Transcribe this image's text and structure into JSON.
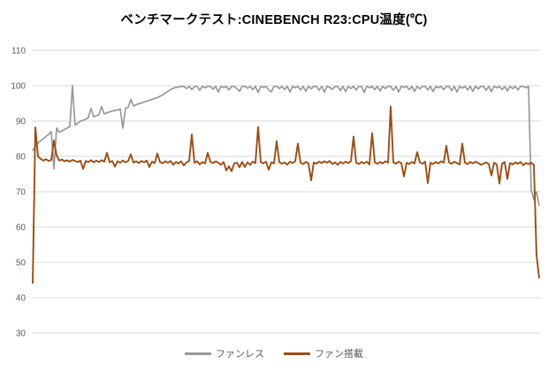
{
  "title": "ベンチマークテスト:CINEBENCH R23:CPU温度(℃)",
  "chart_data": {
    "type": "line",
    "title": "ベンチマークテスト:CINEBENCH R23:CPU温度(℃)",
    "xlabel": "",
    "ylabel": "",
    "x_axis": {
      "visible": false,
      "note": "time during benchmark run, no tick labels shown"
    },
    "y_axis": {
      "min": 30,
      "max": 110,
      "tick_step": 10,
      "ticks": [
        110,
        100,
        90,
        80,
        70,
        60,
        50,
        40,
        30
      ]
    },
    "grid": "horizontal",
    "gridline_color": "#d9d9d9",
    "tick_label_color": "#595959",
    "legend_position": "bottom",
    "series": [
      {
        "name": "ファンレス",
        "key": "fanless",
        "color": "#999999",
        "stroke_width": 1.7,
        "values": [
          81.5,
          83.0,
          83.8,
          84.4,
          85.0,
          85.6,
          86.2,
          87.0,
          76.5,
          88.0,
          86.8,
          87.2,
          87.6,
          88.0,
          88.4,
          100.0,
          88.8,
          89.4,
          90.0,
          90.2,
          90.5,
          91.0,
          93.6,
          91.2,
          91.5,
          91.8,
          94.1,
          92.0,
          92.3,
          92.6,
          92.8,
          93.0,
          93.1,
          93.4,
          88.0,
          93.6,
          93.9,
          96.1,
          94.3,
          94.6,
          94.9,
          95.1,
          95.4,
          95.6,
          95.9,
          96.1,
          96.4,
          96.6,
          97.0,
          97.4,
          97.9,
          98.4,
          98.9,
          99.3,
          99.5,
          99.6,
          99.8,
          99.8,
          99.2,
          99.8,
          98.9,
          99.8,
          99.8,
          98.7,
          99.8,
          99.4,
          99.8,
          99.8,
          99.0,
          99.8,
          98.2,
          99.8,
          99.5,
          99.8,
          98.8,
          99.8,
          99.8,
          99.1,
          98.4,
          99.8,
          99.8,
          99.3,
          99.8,
          98.9,
          99.8,
          98.1,
          99.8,
          99.5,
          99.8,
          98.8,
          98.3,
          99.8,
          99.8,
          99.2,
          99.8,
          98.9,
          99.8,
          98.2,
          99.8,
          99.4,
          99.8,
          98.8,
          99.8,
          98.4,
          99.8,
          99.1,
          99.8,
          99.8,
          98.7,
          99.8,
          98.2,
          99.8,
          99.5,
          99.0,
          99.8,
          99.8,
          98.6,
          99.8,
          98.3,
          99.8,
          99.2,
          99.8,
          98.8,
          99.8,
          99.8,
          98.1,
          99.8,
          99.4,
          99.8,
          98.9,
          99.8,
          98.5,
          99.8,
          99.2,
          99.8,
          99.8,
          98.7,
          99.8,
          98.2,
          99.8,
          99.5,
          99.8,
          98.9,
          99.8,
          98.4,
          99.8,
          99.1,
          99.8,
          99.8,
          98.8,
          99.8,
          98.3,
          99.8,
          99.4,
          99.8,
          98.9,
          99.8,
          99.8,
          98.6,
          99.8,
          98.2,
          99.8,
          99.3,
          99.8,
          98.8,
          99.8,
          98.4,
          99.8,
          99.1,
          99.8,
          99.8,
          98.7,
          99.8,
          98.3,
          99.8,
          99.4,
          99.8,
          98.9,
          99.8,
          98.5,
          99.8,
          99.2,
          99.8,
          98.8,
          99.8,
          99.8,
          99.4,
          99.8,
          70.5,
          67.8,
          70.0,
          66.0
        ]
      },
      {
        "name": "ファン搭載",
        "key": "fan-equipped",
        "color": "#9e4d10",
        "stroke_width": 1.9,
        "values": [
          44.0,
          88.2,
          80.0,
          79.3,
          78.8,
          79.2,
          78.7,
          79.0,
          84.5,
          80.3,
          78.8,
          79.1,
          78.6,
          78.9,
          78.5,
          79.0,
          78.7,
          78.4,
          78.8,
          76.4,
          78.7,
          78.4,
          78.9,
          78.3,
          78.8,
          78.4,
          78.9,
          78.5,
          81.0,
          78.3,
          78.7,
          77.1,
          78.6,
          78.2,
          78.8,
          78.3,
          78.7,
          80.6,
          78.2,
          78.6,
          78.1,
          78.7,
          78.3,
          78.8,
          77.0,
          78.5,
          78.1,
          80.8,
          78.4,
          78.0,
          78.6,
          78.2,
          78.7,
          77.6,
          78.4,
          78.0,
          78.6,
          77.4,
          78.3,
          78.7,
          86.2,
          78.2,
          78.6,
          77.7,
          78.4,
          78.0,
          81.0,
          78.5,
          78.1,
          78.6,
          78.2,
          77.6,
          78.4,
          76.0,
          77.2,
          75.8,
          78.0,
          78.2,
          76.9,
          78.4,
          77.0,
          78.3,
          77.6,
          78.5,
          78.1,
          88.3,
          78.4,
          78.0,
          78.5,
          76.2,
          78.3,
          78.0,
          84.3,
          78.4,
          77.9,
          78.3,
          77.6,
          78.5,
          78.1,
          78.6,
          83.6,
          78.2,
          77.8,
          78.4,
          78.0,
          73.2,
          78.3,
          77.9,
          78.5,
          78.1,
          78.6,
          78.2,
          78.7,
          77.8,
          78.3,
          77.6,
          78.4,
          78.0,
          78.5,
          78.1,
          78.6,
          85.6,
          78.2,
          77.8,
          78.4,
          78.0,
          78.5,
          77.7,
          86.6,
          78.3,
          77.9,
          78.4,
          78.0,
          78.6,
          78.2,
          94.1,
          78.3,
          77.9,
          78.5,
          78.1,
          74.3,
          78.2,
          77.8,
          78.4,
          78.0,
          81.2,
          78.3,
          77.9,
          78.5,
          72.4,
          78.2,
          77.8,
          78.4,
          78.0,
          78.6,
          78.2,
          83.0,
          78.3,
          77.9,
          78.5,
          78.1,
          77.7,
          83.6,
          78.2,
          77.8,
          78.4,
          78.0,
          78.5,
          78.1,
          77.6,
          77.9,
          78.3,
          77.8,
          74.6,
          78.2,
          77.7,
          72.3,
          77.9,
          78.4,
          73.6,
          78.1,
          77.7,
          78.3,
          77.9,
          78.4,
          77.5,
          78.1,
          77.8,
          78.2,
          77.6,
          52.2,
          45.5
        ]
      }
    ]
  },
  "legend": {
    "items": [
      {
        "label": "ファンレス"
      },
      {
        "label": "ファン搭載"
      }
    ]
  }
}
